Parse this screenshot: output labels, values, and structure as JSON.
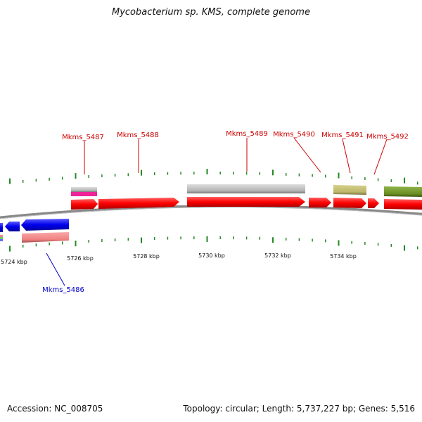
{
  "title": "Mycobacterium sp. KMS, complete genome",
  "footer": {
    "accession": "Accession: NC_008705",
    "summary": "Topology: circular; Length: 5,737,227 bp; Genes: 5,516"
  },
  "colors": {
    "forward_cds": "#ff0000",
    "reverse_cds": "#0000ee",
    "label_forward": "#cc0000",
    "label_reverse": "#0000cc",
    "tick": "#228822",
    "backbone": "#888888",
    "gray_feature": "#bbbbbb",
    "pink_feature": "#ee2299",
    "salmon_feature": "#f08080",
    "khaki_feature": "#bdb76b",
    "olive_feature": "#6b8e23"
  },
  "kbp_labels": [
    "5724 kbp",
    "5726 kbp",
    "5728 kbp",
    "5730 kbp",
    "5732 kbp",
    "5734 kbp"
  ],
  "gene_labels": [
    {
      "name": "Mkms_5486",
      "strand": "reverse"
    },
    {
      "name": "Mkms_5487",
      "strand": "forward"
    },
    {
      "name": "Mkms_5488",
      "strand": "forward"
    },
    {
      "name": "Mkms_5489",
      "strand": "forward"
    },
    {
      "name": "Mkms_5490",
      "strand": "forward"
    },
    {
      "name": "Mkms_5491",
      "strand": "forward"
    },
    {
      "name": "Mkms_5492",
      "strand": "forward"
    }
  ]
}
